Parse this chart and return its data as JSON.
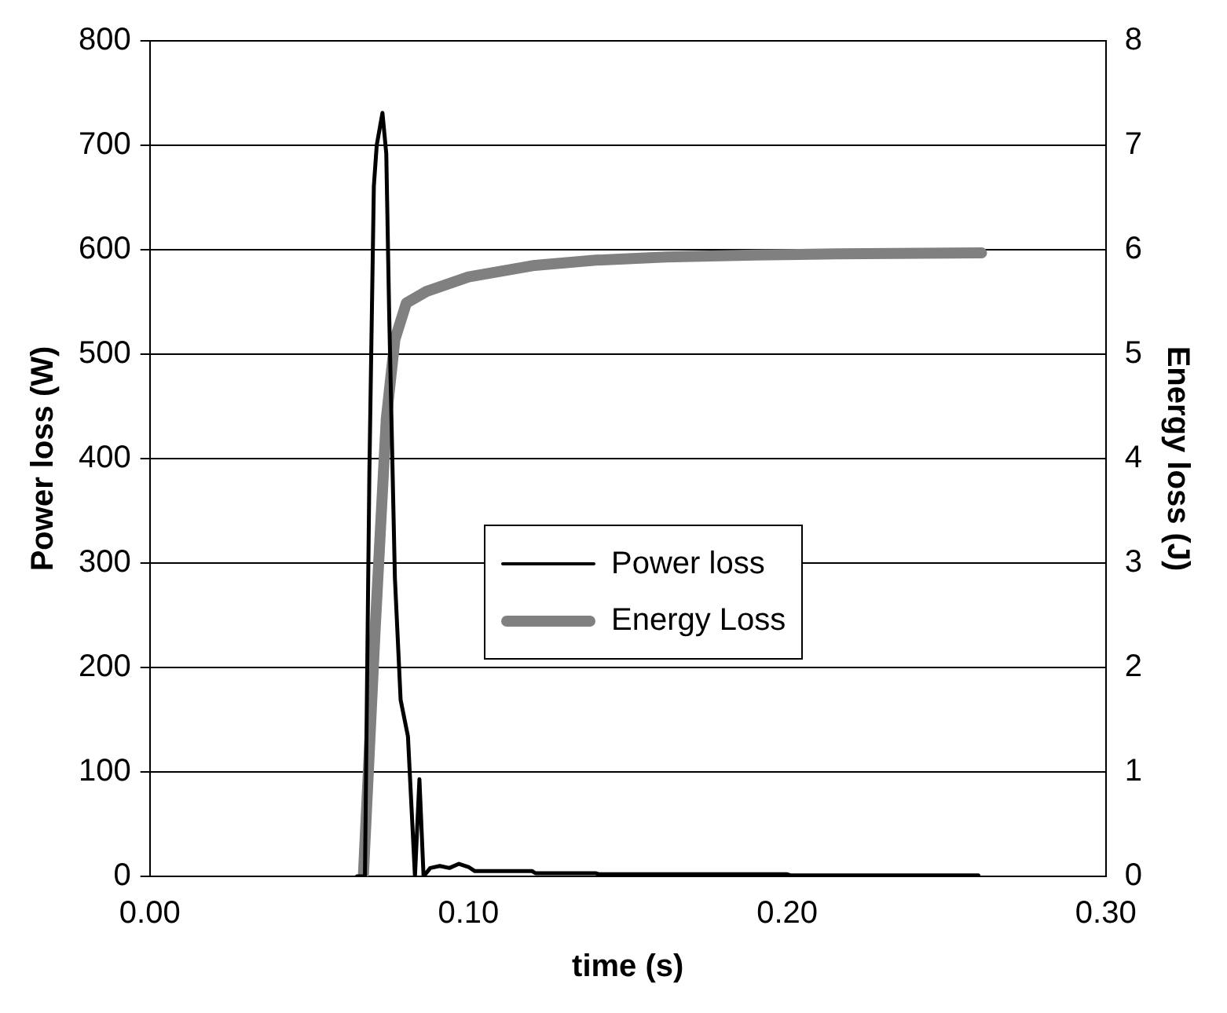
{
  "chart_data": {
    "type": "line",
    "xlabel": "time (s)",
    "ylabel": "Power loss (W)",
    "y2label": "Energy loss (J)",
    "xlim": [
      0,
      0.3
    ],
    "xticks": [
      {
        "value": 0,
        "label": "0.00"
      },
      {
        "value": 0.1,
        "label": "0.10"
      },
      {
        "value": 0.2,
        "label": "0.20"
      },
      {
        "value": 0.3,
        "label": "0.30"
      }
    ],
    "ylim": [
      0,
      800
    ],
    "yticks": [
      0,
      100,
      200,
      300,
      400,
      500,
      600,
      700,
      800
    ],
    "y2lim": [
      0,
      8
    ],
    "y2ticks": [
      0,
      1,
      2,
      3,
      4,
      5,
      6,
      7,
      8
    ],
    "grid": "y",
    "legend": "center",
    "marker": "none",
    "line_style": "solid",
    "series": [
      {
        "name": "Power loss",
        "color": "#000000",
        "x": [
          0.065,
          0.0675,
          0.0689,
          0.0703,
          0.0712,
          0.073,
          0.0742,
          0.0751,
          0.0769,
          0.0787,
          0.081,
          0.0832,
          0.0846,
          0.0859,
          0.088,
          0.091,
          0.094,
          0.097,
          0.1,
          0.102,
          0.12,
          0.121,
          0.14,
          0.141,
          0.2,
          0.201,
          0.26
        ],
        "values": [
          0,
          0,
          388,
          661,
          700,
          731,
          692,
          540,
          286,
          169,
          134,
          0,
          93,
          0,
          8,
          10,
          8,
          12,
          9,
          5,
          5,
          3,
          3,
          2,
          2,
          1,
          1
        ]
      },
      {
        "name": "Energy Loss",
        "color": "#808080",
        "axis": "y2",
        "x": [
          0.067,
          0.0707,
          0.0742,
          0.0769,
          0.0805,
          0.0868,
          0.1,
          0.1208,
          0.14,
          0.162,
          0.19,
          0.2157,
          0.261
        ],
        "values": [
          0,
          2.36,
          4.38,
          5.14,
          5.49,
          5.6,
          5.74,
          5.85,
          5.9,
          5.93,
          5.95,
          5.96,
          5.97
        ]
      }
    ]
  }
}
